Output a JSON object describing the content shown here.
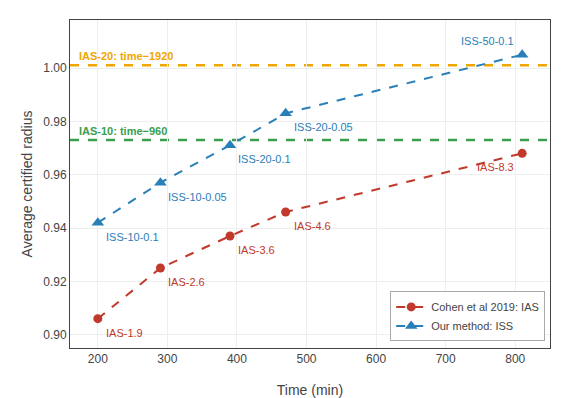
{
  "chart_data": {
    "type": "line",
    "x": [
      200,
      290,
      390,
      470,
      810
    ],
    "series": [
      {
        "name": "Cohen et al 2019: IAS",
        "color": "#c0392b",
        "marker": "circle",
        "line_style": "dashed",
        "values": [
          0.906,
          0.925,
          0.937,
          0.946,
          0.968
        ],
        "labels": [
          "IAS-1.9",
          "IAS-2.6",
          "IAS-3.6",
          "IAS-4.6",
          "IAS-8.3"
        ]
      },
      {
        "name": "Our method: ISS",
        "color": "#2980b9",
        "marker": "triangle-up",
        "line_style": "dashed",
        "values": [
          0.942,
          0.957,
          0.971,
          0.983,
          1.005
        ],
        "labels": [
          "ISS-10-0.1",
          "ISS-10-0.05",
          "ISS-20-0.1",
          "ISS-20-0.05",
          "ISS-50-0.1"
        ]
      }
    ],
    "reference_lines": [
      {
        "y": 1.001,
        "label": "IAS-20: time−1920",
        "color": "#f0a500",
        "line_style": "dashed"
      },
      {
        "y": 0.973,
        "label": "IAS-10: time−960",
        "color": "#3a9e4e",
        "line_style": "dashed"
      }
    ],
    "xlabel": "Time (min)",
    "ylabel": "Average certified radius",
    "xlim": [
      160,
      850
    ],
    "ylim": [
      0.895,
      1.018
    ],
    "xticks": [
      200,
      300,
      400,
      500,
      600,
      700,
      800
    ],
    "yticks": [
      {
        "value": 0.9,
        "label": "0.90"
      },
      0.92,
      0.94,
      0.96,
      0.98,
      {
        "value": 1.0,
        "label": "1.00"
      }
    ],
    "grid": true,
    "legend": "lower right"
  }
}
